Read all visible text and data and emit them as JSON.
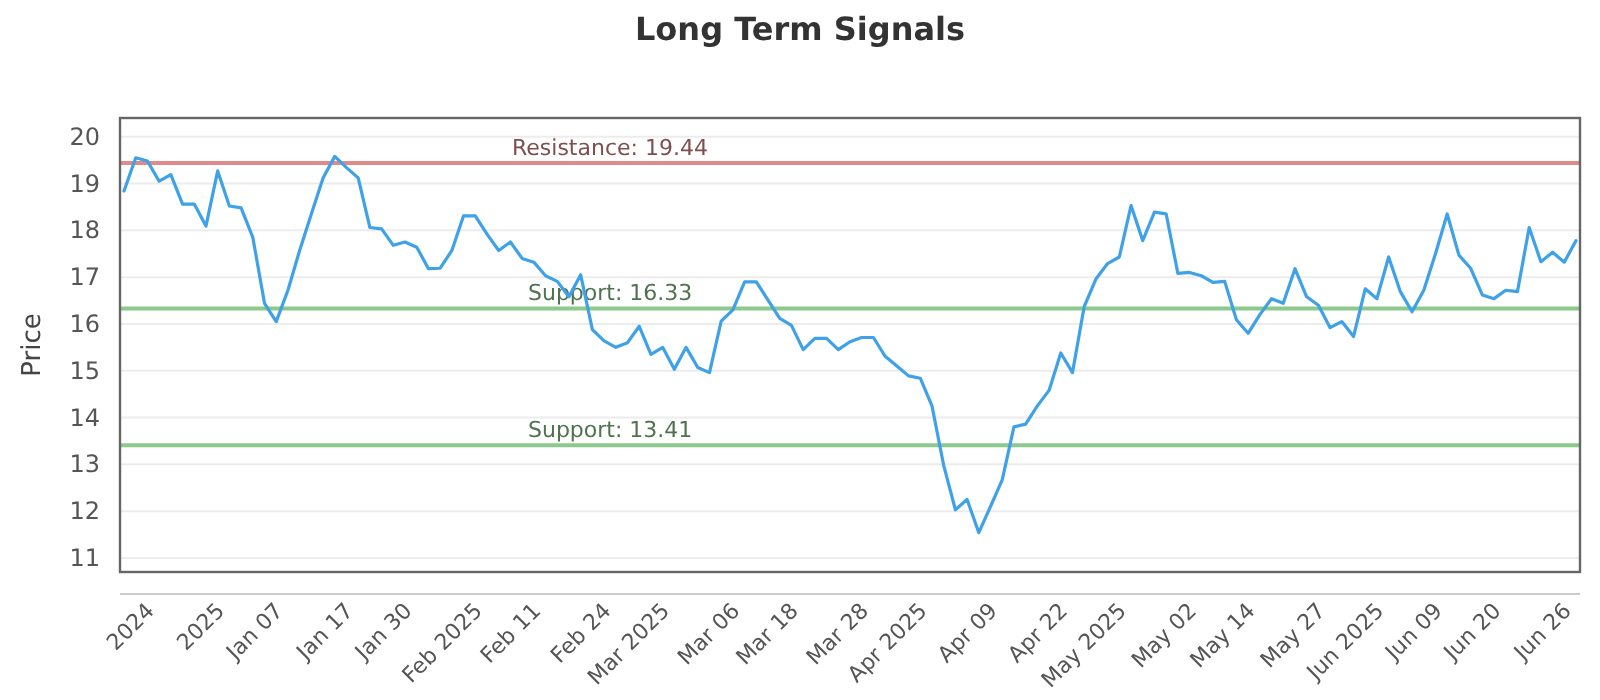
{
  "chart_data": {
    "type": "line",
    "title": "Long Term Signals",
    "ylabel": "Price",
    "categories": [
      null,
      null,
      "2024",
      null,
      null,
      null,
      null,
      null,
      "2025",
      null,
      null,
      null,
      null,
      "Jan 07",
      null,
      null,
      null,
      null,
      null,
      "Jan 17",
      null,
      null,
      null,
      null,
      "Jan 30",
      null,
      null,
      null,
      null,
      null,
      "Feb 2025",
      null,
      null,
      null,
      null,
      "Feb 11",
      null,
      null,
      null,
      null,
      null,
      "Feb 24",
      null,
      null,
      null,
      null,
      "Mar 2025",
      null,
      null,
      null,
      null,
      null,
      "Mar 06",
      null,
      null,
      null,
      null,
      "Mar 18",
      null,
      null,
      null,
      null,
      null,
      "Mar 28",
      null,
      null,
      null,
      null,
      "Apr 2025",
      null,
      null,
      null,
      null,
      null,
      "Apr 09",
      null,
      null,
      null,
      null,
      null,
      "Apr 22",
      null,
      null,
      null,
      null,
      "May 2025",
      null,
      null,
      null,
      null,
      null,
      "May 02",
      null,
      null,
      null,
      null,
      "May 14",
      null,
      null,
      null,
      null,
      null,
      "May 27",
      null,
      null,
      null,
      null,
      "Jun 2025",
      null,
      null,
      null,
      null,
      "Jun 09",
      null,
      null,
      null,
      null,
      "Jun 20",
      null,
      null,
      null,
      null,
      null,
      "Jun 26",
      null
    ],
    "series": [
      {
        "color": "#3fa1e8",
        "values": [
          18.84,
          19.55,
          19.48,
          19.05,
          19.19,
          18.56,
          18.56,
          18.09,
          19.27,
          18.52,
          18.48,
          17.85,
          16.44,
          16.05,
          16.72,
          17.57,
          18.35,
          19.12,
          19.58,
          19.34,
          19.12,
          18.06,
          18.03,
          17.68,
          17.75,
          17.64,
          17.18,
          17.19,
          17.57,
          18.31,
          18.31,
          17.92,
          17.57,
          17.75,
          17.4,
          17.32,
          17.03,
          16.91,
          16.58,
          17.05,
          15.88,
          15.64,
          15.5,
          15.6,
          15.95,
          15.35,
          15.5,
          15.03,
          15.5,
          15.07,
          14.96,
          16.06,
          16.3,
          16.9,
          16.9,
          16.51,
          16.12,
          15.97,
          15.45,
          15.69,
          15.69,
          15.45,
          15.62,
          15.71,
          15.71,
          15.31,
          15.1,
          14.89,
          14.84,
          14.25,
          12.98,
          12.03,
          12.25,
          11.54,
          12.1,
          12.67,
          13.8,
          13.86,
          14.25,
          14.58,
          15.38,
          14.96,
          16.37,
          16.96,
          17.29,
          17.43,
          18.53,
          17.78,
          18.39,
          18.35,
          17.08,
          17.1,
          17.03,
          16.89,
          16.91,
          16.09,
          15.8,
          16.2,
          16.54,
          16.44,
          17.18,
          16.58,
          16.4,
          15.92,
          16.05,
          15.73,
          16.75,
          16.54,
          17.43,
          16.69,
          16.26,
          16.72,
          17.5,
          18.35,
          17.47,
          17.19,
          16.62,
          16.54,
          16.72,
          16.69,
          18.06,
          17.33,
          17.53,
          17.32,
          17.78
        ]
      }
    ],
    "ylim": [
      10.7,
      20.4
    ],
    "yticks": [
      11,
      12,
      13,
      14,
      15,
      16,
      17,
      18,
      19,
      20
    ],
    "grid": "y",
    "ref_lines": [
      {
        "axis": "y",
        "value": 19.44,
        "label": "Resistance: 19.44",
        "color": "#e08a8a"
      },
      {
        "axis": "y",
        "value": 16.33,
        "label": "Support: 16.33",
        "color": "#8cc98c"
      },
      {
        "axis": "y",
        "value": 13.41,
        "label": "Support: 13.41",
        "color": "#8cc98c"
      }
    ]
  }
}
